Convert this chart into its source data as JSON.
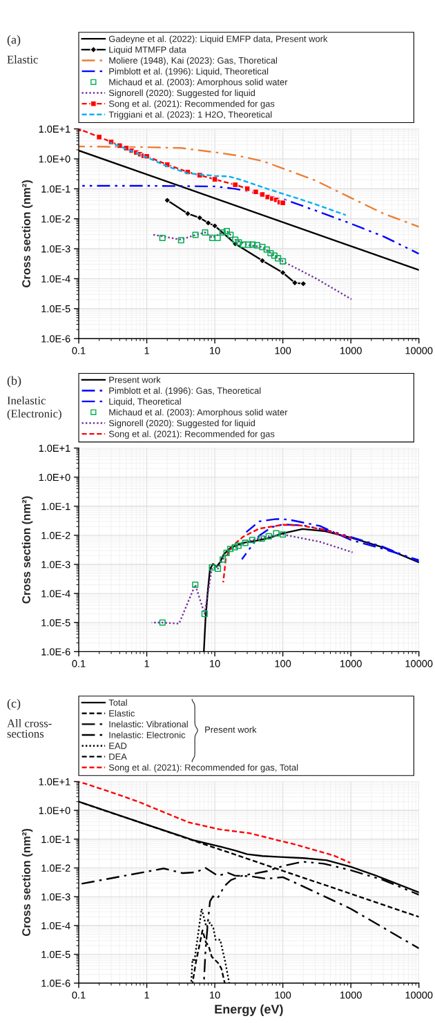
{
  "chart_data": [
    {
      "type": "line",
      "ylabel": "Cross section (nm²)",
      "annotations": [
        "(a)",
        "Elastic"
      ],
      "log": "xy",
      "grid": true,
      "legend": "top",
      "xlim": [
        0.1,
        10000
      ],
      "xticks": [
        0.1,
        1,
        10,
        100,
        1000,
        10000
      ],
      "ylim": [
        1e-06,
        10
      ],
      "yticks": [
        {
          "value": 1e-06,
          "label": "1.0E-6"
        },
        {
          "value": 1e-05,
          "label": "1.0E-5"
        },
        {
          "value": 0.0001,
          "label": "1.0E-4"
        },
        {
          "value": 0.001,
          "label": "1.0E-3"
        },
        {
          "value": 0.01,
          "label": "1.0E-2"
        },
        {
          "value": 0.1,
          "label": "1.0E-1"
        },
        {
          "value": 1,
          "label": "1.0E+0"
        },
        {
          "value": 10,
          "label": "1.0E+1"
        }
      ],
      "series": [
        {
          "name": "Gadeyne et al. (2022): Liquid EMFP data, Present work",
          "color": "#000000",
          "line_style": "solid",
          "marker": "none",
          "x": [
            0.1,
            10000
          ],
          "values": [
            1.9,
            0.000195
          ]
        },
        {
          "name": "Liquid MTMFP data",
          "color": "#000000",
          "line_style": "solid",
          "marker": "diamond",
          "x": [
            2,
            4,
            6,
            8,
            10,
            20,
            50,
            100,
            150,
            200
          ],
          "values": [
            0.0414,
            0.0149,
            0.0108,
            0.00726,
            0.0058,
            0.00146,
            0.0004,
            0.000159,
            7.3e-05,
            6.8e-05
          ]
        },
        {
          "name": "Moliere (1948), Kai (2023): Gas, Thoretical",
          "color": "#ed7d31",
          "line_style": "dashdot",
          "marker": "none",
          "x": [
            0.1,
            1,
            3.2,
            10,
            20,
            50,
            100,
            300,
            1000,
            3000,
            10000
          ],
          "values": [
            2.6,
            2.46,
            2.3,
            1.66,
            1.32,
            0.85,
            0.48,
            0.19,
            0.05,
            0.015,
            0.0054
          ]
        },
        {
          "name": "Pimblott et al. (1996): Liquid, Theoretical",
          "color": "#0000ff",
          "line_style": "dashdotdot",
          "marker": "none",
          "x": [
            0.1,
            1,
            10,
            20,
            100,
            320,
            1000,
            3100,
            10000
          ],
          "values": [
            0.126,
            0.126,
            0.12,
            0.1,
            0.046,
            0.018,
            0.0069,
            0.0025,
            0.00068
          ]
        },
        {
          "name": "Michaud et al. (2003): Amorphous solid water",
          "color": "#00b050",
          "type": "scatter",
          "marker": "square",
          "x": [
            1.7,
            3.2,
            5.2,
            7.2,
            9.2,
            11,
            13,
            15,
            17,
            20,
            22.5,
            26,
            31,
            36,
            42,
            50,
            58,
            66,
            75,
            85,
            100
          ],
          "values": [
            0.00229,
            0.00193,
            0.0029,
            0.0035,
            0.0023,
            0.0023,
            0.0035,
            0.0039,
            0.0029,
            0.002,
            0.00163,
            0.00137,
            0.00137,
            0.00137,
            0.0013,
            0.00114,
            0.00094,
            0.00071,
            0.00059,
            0.00048,
            0.00038
          ]
        },
        {
          "name": "Signorell (2020): Suggested for liquid",
          "color": "#7030a0",
          "line_style": "dotted",
          "marker": "none",
          "x": [
            1.17,
            1.7,
            3.2,
            5.2,
            7.2,
            9.2,
            13,
            15,
            20,
            30,
            50,
            75,
            100,
            320,
            1020
          ],
          "values": [
            0.003,
            0.0026,
            0.002,
            0.0029,
            0.0035,
            0.0023,
            0.0035,
            0.0039,
            0.002,
            0.00135,
            0.00114,
            0.00059,
            0.00038,
            9.7e-05,
            2.06e-05
          ]
        },
        {
          "name": "Song et al. (2021): Recommended for gas",
          "color": "#ff0000",
          "line_style": "dashed",
          "marker": "square",
          "x": [
            0.1,
            0.2,
            0.3,
            0.4,
            0.5,
            0.6,
            0.7,
            0.8,
            0.9,
            1,
            2,
            4,
            6,
            10,
            20,
            30,
            40,
            50,
            60,
            70,
            80,
            90,
            100
          ],
          "values": [
            10,
            5.36,
            3.67,
            2.76,
            2.29,
            1.89,
            1.63,
            1.43,
            1.27,
            1.22,
            0.64,
            0.365,
            0.285,
            0.207,
            0.136,
            0.101,
            0.079,
            0.065,
            0.053,
            0.047,
            0.043,
            0.0356,
            0.034
          ]
        },
        {
          "name": "Triggiani et al. (2023): 1 H2O, Theoretical",
          "color": "#00b0f0",
          "line_style": "dashed",
          "marker": "none",
          "x": [
            0.29,
            0.64,
            1,
            2,
            4,
            10,
            16,
            26,
            59,
            155,
            295,
            843
          ],
          "values": [
            3.5,
            1.7,
            1.13,
            0.56,
            0.33,
            0.27,
            0.26,
            0.19,
            0.1,
            0.05,
            0.031,
            0.0133
          ]
        }
      ]
    },
    {
      "type": "line",
      "ylabel": "Cross section (nm²)",
      "annotations": [
        "(b)",
        "Inelastic",
        "(Electronic)"
      ],
      "log": "xy",
      "grid": true,
      "legend": "top",
      "xlim": [
        0.1,
        10000
      ],
      "xticks": [
        0.1,
        1,
        10,
        100,
        1000,
        10000
      ],
      "ylim": [
        1e-06,
        10
      ],
      "yticks": [
        {
          "value": 1e-06,
          "label": "1.0E-6"
        },
        {
          "value": 1e-05,
          "label": "1.0E-5"
        },
        {
          "value": 0.0001,
          "label": "1.0E-4"
        },
        {
          "value": 0.001,
          "label": "1.0E-3"
        },
        {
          "value": 0.01,
          "label": "1.0E-2"
        },
        {
          "value": 0.1,
          "label": "1.0E-1"
        },
        {
          "value": 1,
          "label": "1.0E+0"
        },
        {
          "value": 10,
          "label": "1.0E+1"
        }
      ],
      "series": [
        {
          "name": "Present work",
          "color": "#000000",
          "line_style": "solid",
          "marker": "none",
          "x": [
            6.9,
            7.0,
            7.3,
            7.9,
            8.5,
            9.4,
            10.6,
            12,
            13.5,
            17.2,
            26,
            40,
            58,
            100,
            195,
            400,
            1000,
            3000,
            10000
          ],
          "values": [
            1e-06,
            1.9e-06,
            1.3e-05,
            0.000126,
            0.00069,
            0.00104,
            0.00083,
            0.0012,
            0.0022,
            0.0038,
            0.0055,
            0.0065,
            0.0077,
            0.0117,
            0.0165,
            0.0141,
            0.0083,
            0.0038,
            0.00117
          ]
        },
        {
          "name": "Pimblott et al. (1996): Gas, Theoretical",
          "color": "#0000ff",
          "line_style": "dashdot",
          "marker": "none",
          "x": [
            29,
            45,
            80,
            120,
            350,
            1000,
            3000,
            10000
          ],
          "values": [
            0.0129,
            0.03,
            0.0365,
            0.035,
            0.021,
            0.0069,
            0.0034,
            0.0014
          ]
        },
        {
          "name": "Liquid, Theoretical",
          "color": "#0000ff",
          "line_style": "dashdotdot",
          "marker": "none",
          "x": [
            25,
            45,
            68,
            100,
            200,
            500,
            1000,
            3000,
            10000
          ],
          "values": [
            0.0015,
            0.0097,
            0.019,
            0.0236,
            0.022,
            0.014,
            0.0088,
            0.004,
            0.00125
          ]
        },
        {
          "name": "Michaud et al. (2003): Amorphous solid water",
          "color": "#00b050",
          "type": "scatter",
          "marker": "square",
          "x": [
            1.7,
            5.16,
            7.08,
            9.1,
            11.1,
            13.1,
            14.9,
            16.9,
            19.7,
            22.3,
            28,
            35.5,
            49,
            62,
            80,
            100
          ],
          "values": [
            1e-05,
            0.0002,
            2e-05,
            0.00079,
            0.00071,
            0.00147,
            0.0025,
            0.0034,
            0.0039,
            0.0044,
            0.0055,
            0.0069,
            0.0077,
            0.0093,
            0.0117,
            0.0107
          ]
        },
        {
          "name": "Signorell (2020): Suggested for liquid",
          "color": "#7030a0",
          "line_style": "dotted",
          "marker": "none",
          "x": [
            1.18,
            1.7,
            2.98,
            5.16,
            7.08,
            9.1,
            11.1,
            13.1,
            16.9,
            22.3,
            35.5,
            62,
            100,
            350,
            1060
          ],
          "values": [
            1e-05,
            1e-05,
            9.2e-06,
            0.0002,
            2e-05,
            0.00079,
            0.00071,
            0.00147,
            0.0034,
            0.0044,
            0.0069,
            0.0093,
            0.0107,
            0.006,
            0.0026
          ]
        },
        {
          "name": "Song et al. (2021): Recommended for gas",
          "color": "#ff0000",
          "line_style": "dashed",
          "marker": "none",
          "x": [
            13.3,
            14.6,
            18.7,
            26,
            45,
            100,
            180,
            400,
            1020
          ],
          "values": [
            0.00024,
            0.0018,
            0.0046,
            0.0089,
            0.017,
            0.023,
            0.022,
            0.0155,
            0.008
          ]
        }
      ]
    },
    {
      "type": "line",
      "xlabel": "Energy (eV)",
      "ylabel": "Cross section (nm²)",
      "annotations": [
        "(c)",
        "All cross-\nsections",
        "Present work"
      ],
      "log": "xy",
      "grid": true,
      "legend": "top",
      "xlim": [
        0.1,
        10000
      ],
      "xticks": [
        0.1,
        1,
        10,
        100,
        1000,
        10000
      ],
      "ylim": [
        1e-06,
        10
      ],
      "yticks": [
        {
          "value": 1e-06,
          "label": "1.0E-6"
        },
        {
          "value": 1e-05,
          "label": "1.0E-5"
        },
        {
          "value": 0.0001,
          "label": "1.0E-4"
        },
        {
          "value": 0.001,
          "label": "1.0E-3"
        },
        {
          "value": 0.01,
          "label": "1.0E-2"
        },
        {
          "value": 0.1,
          "label": "1.0E-1"
        },
        {
          "value": 1,
          "label": "1.0E+0"
        },
        {
          "value": 10,
          "label": "1.0E+1"
        }
      ],
      "series": [
        {
          "name": "Total",
          "color": "#000000",
          "line_style": "solid",
          "marker": "none",
          "x": [
            0.1,
            1,
            5,
            12,
            20,
            30,
            50,
            90,
            200,
            440,
            1000,
            2260,
            10000
          ],
          "values": [
            2.0,
            0.32,
            0.09,
            0.055,
            0.04,
            0.03,
            0.026,
            0.024,
            0.022,
            0.0185,
            0.011,
            0.0056,
            0.00141
          ]
        },
        {
          "name": "Elastic",
          "color": "#000000",
          "line_style": "dashed",
          "marker": "none",
          "x": [
            0.1,
            10000
          ],
          "values": [
            2.0,
            0.0002
          ]
        },
        {
          "name": "Inelastic: Vibrational",
          "color": "#000000",
          "line_style": "dashdot",
          "marker": "none",
          "x": [
            0.1,
            1.77,
            3.4,
            5.3,
            7.3,
            11.1,
            15.5,
            19.7,
            35,
            57,
            100,
            190,
            1000,
            10000
          ],
          "values": [
            0.0027,
            0.0096,
            0.0066,
            0.0071,
            0.01,
            0.0053,
            0.0068,
            0.0054,
            0.0051,
            0.0042,
            0.0048,
            0.0024,
            0.00038,
            1.6e-05
          ]
        },
        {
          "name": "Inelastic: Electronic",
          "color": "#000000",
          "line_style": "dashdotdot",
          "marker": "none",
          "x": [
            6.9,
            7.0,
            7.3,
            7.9,
            8.5,
            9.4,
            10.6,
            12,
            13.5,
            17.2,
            26,
            40,
            58,
            100,
            195,
            400,
            1000,
            3000,
            10000
          ],
          "values": [
            1e-06,
            1.9e-06,
            1.3e-05,
            0.000126,
            0.00069,
            0.00104,
            0.00083,
            0.0012,
            0.0022,
            0.0038,
            0.0055,
            0.0065,
            0.0077,
            0.0117,
            0.0165,
            0.0141,
            0.0083,
            0.0038,
            0.00117
          ]
        },
        {
          "name": "EAD",
          "color": "#000000",
          "line_style": "dotted",
          "marker": "none",
          "x": [
            4.5,
            4.7,
            5.0,
            6.4,
            7.5,
            8.5,
            9.5,
            10.3,
            12.0,
            14.2,
            16.3
          ],
          "values": [
            1e-06,
            6.8e-06,
            5.6e-06,
            0.00038,
            9.1e-05,
            0.000126,
            8.3e-05,
            3.2e-05,
            3.2e-05,
            5.6e-06,
            1e-06
          ]
        },
        {
          "name": "DEA",
          "color": "#000000",
          "line_style": "dashed",
          "marker": "none",
          "x": [
            4.7,
            5.3,
            6.6,
            7.4,
            8.1,
            9.0,
            11.1,
            12.5,
            14.0
          ],
          "values": [
            1e-06,
            5.6e-06,
            6.8e-05,
            2.6e-05,
            2e-05,
            8.3e-06,
            5.1e-06,
            3.2e-06,
            1e-06
          ]
        },
        {
          "name": "Song et al. (2021): Recommended for gas, Total",
          "color": "#ff0000",
          "line_style": "dashed",
          "marker": "none",
          "x": [
            0.1,
            0.29,
            0.75,
            4.1,
            11.6,
            33,
            85,
            150,
            560,
            980
          ],
          "values": [
            10,
            4.4,
            2.0,
            0.385,
            0.22,
            0.16,
            0.091,
            0.066,
            0.027,
            0.015
          ]
        }
      ]
    }
  ]
}
